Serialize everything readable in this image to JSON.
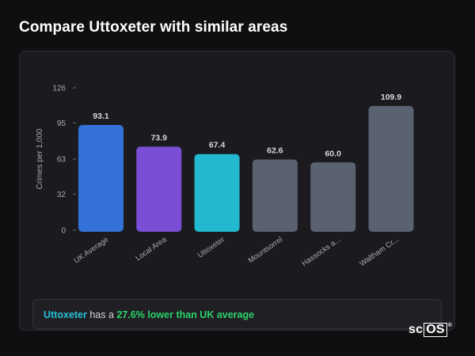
{
  "page": {
    "title": "Compare Uttoxeter with similar areas"
  },
  "chart_data": {
    "type": "bar",
    "ylabel": "Crimes per 1,000",
    "xlabel": "",
    "ylim": [
      0,
      126
    ],
    "yticks": [
      0,
      32,
      63,
      95,
      126
    ],
    "grid": false,
    "categories": [
      "UK Average",
      "Local Area",
      "Uttoxeter",
      "Mountsorrel",
      "Hassocks a...",
      "Waltham Cr..."
    ],
    "values": [
      93.1,
      73.9,
      67.4,
      62.6,
      60.0,
      109.9
    ],
    "value_labels": [
      "93.1",
      "73.9",
      "67.4",
      "62.6",
      "60.0",
      "109.9"
    ],
    "colors": [
      "#3472d9",
      "#7a4fd6",
      "#22b8cf",
      "#5a6272",
      "#5a6272",
      "#5a6272"
    ]
  },
  "summary": {
    "area": "Uttoxeter",
    "middle": " has a ",
    "diff": "27.6% lower than UK average"
  },
  "brand": {
    "prefix": "sc",
    "boxed": "OS",
    "mark": "®"
  }
}
